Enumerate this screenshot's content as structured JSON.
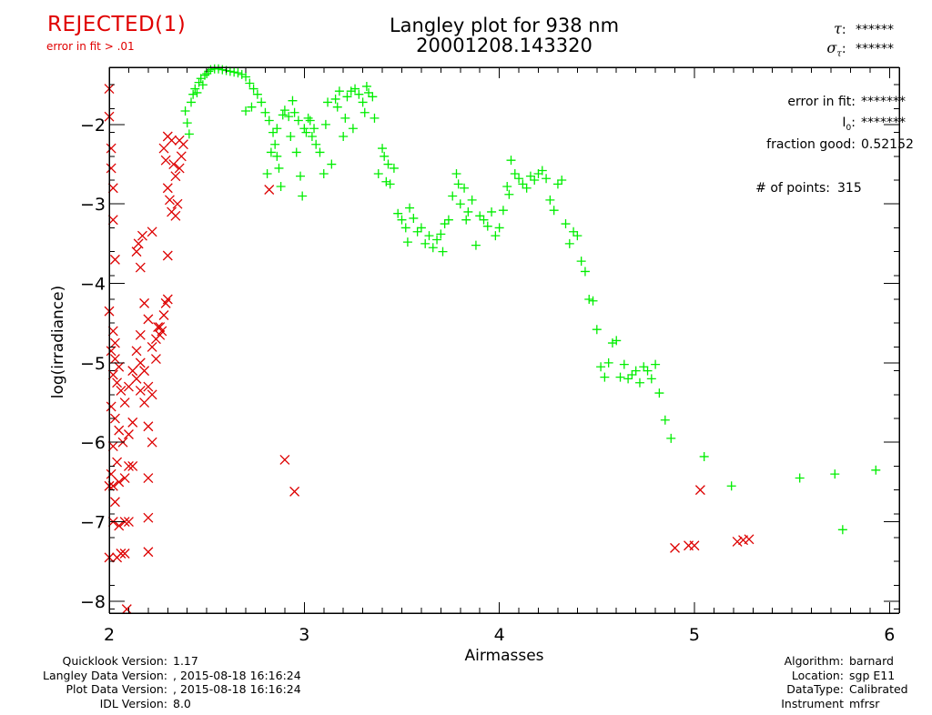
{
  "header": {
    "status": "REJECTED(1)",
    "status_reason": "error in fit > .01",
    "title_line1": "Langley plot for 938 nm",
    "title_line2": "20001208.143320",
    "tau_label": ":",
    "tau_value": "******",
    "sigma_tau_label": ":",
    "sigma_tau_value": "******"
  },
  "fit_stats": [
    {
      "label": "error in fit:",
      "value": "*******"
    },
    {
      "label": "I",
      "sub": "0",
      "suffix": ":",
      "value": "*******"
    },
    {
      "label": "fraction good:",
      "value": "0.52152"
    },
    {
      "label": "# of points:",
      "value": "315"
    }
  ],
  "footer_left": [
    {
      "label": "Quicklook Version:",
      "value": "1.17"
    },
    {
      "label": "Langley Data Version:",
      "value": ", 2015-08-18 16:16:24"
    },
    {
      "label": "Plot Data Version:",
      "value": ", 2015-08-18 16:16:24"
    },
    {
      "label": "IDL Version:",
      "value": "8.0"
    }
  ],
  "footer_right": [
    {
      "label": "Algorithm:",
      "value": "barnard"
    },
    {
      "label": "Location:",
      "value": "sgp E11"
    },
    {
      "label": "DataType:",
      "value": "Calibrated"
    },
    {
      "label": "Instrument",
      "value": "mfrsr"
    }
  ],
  "colors": {
    "status": "#e00000",
    "accepted": "#00ee00",
    "rejected": "#dd0000",
    "axis": "#000000"
  },
  "chart_data": {
    "type": "scatter",
    "title": "Langley plot for 938 nm",
    "subtitle": "20001208.143320",
    "xlabel": "Airmasses",
    "ylabel": "log(irradiance)",
    "xlim": [
      2,
      6.05
    ],
    "ylim": [
      -8.15,
      -1.28
    ],
    "xticks": [
      2,
      3,
      4,
      5,
      6
    ],
    "xtick_labels": [
      "2",
      "3",
      "4",
      "5",
      "6"
    ],
    "x_minor_step": 0.1,
    "yticks": [
      -2,
      -3,
      -4,
      -5,
      -6,
      -7,
      -8
    ],
    "ytick_labels": [
      "-2",
      "-3",
      "-4",
      "-5",
      "-6",
      "-7",
      "-8"
    ],
    "y_minor_step": 0.1,
    "grid": false,
    "series": [
      {
        "name": "accepted",
        "marker": "plus",
        "color": "#00ee00",
        "points": [
          [
            2.39,
            -1.83
          ],
          [
            2.4,
            -1.98
          ],
          [
            2.41,
            -2.12
          ],
          [
            2.42,
            -1.72
          ],
          [
            2.43,
            -1.62
          ],
          [
            2.44,
            -1.55
          ],
          [
            2.45,
            -1.6
          ],
          [
            2.46,
            -1.47
          ],
          [
            2.47,
            -1.42
          ],
          [
            2.48,
            -1.5
          ],
          [
            2.49,
            -1.38
          ],
          [
            2.5,
            -1.36
          ],
          [
            2.51,
            -1.33
          ],
          [
            2.52,
            -1.31
          ],
          [
            2.54,
            -1.3
          ],
          [
            2.56,
            -1.3
          ],
          [
            2.58,
            -1.31
          ],
          [
            2.6,
            -1.32
          ],
          [
            2.62,
            -1.33
          ],
          [
            2.64,
            -1.34
          ],
          [
            2.66,
            -1.35
          ],
          [
            2.68,
            -1.37
          ],
          [
            2.7,
            -1.4
          ],
          [
            2.72,
            -1.48
          ],
          [
            2.74,
            -1.55
          ],
          [
            2.76,
            -1.62
          ],
          [
            2.78,
            -1.72
          ],
          [
            2.7,
            -1.83
          ],
          [
            2.73,
            -1.78
          ],
          [
            2.8,
            -1.85
          ],
          [
            2.82,
            -1.95
          ],
          [
            2.84,
            -2.1
          ],
          [
            2.85,
            -2.25
          ],
          [
            2.86,
            -2.4
          ],
          [
            2.87,
            -2.55
          ],
          [
            2.88,
            -2.78
          ],
          [
            2.83,
            -2.35
          ],
          [
            2.81,
            -2.62
          ],
          [
            2.86,
            -2.05
          ],
          [
            2.89,
            -1.88
          ],
          [
            2.9,
            -1.82
          ],
          [
            2.92,
            -1.9
          ],
          [
            2.93,
            -2.15
          ],
          [
            2.94,
            -1.7
          ],
          [
            2.95,
            -1.85
          ],
          [
            2.96,
            -2.35
          ],
          [
            2.97,
            -1.95
          ],
          [
            2.98,
            -2.65
          ],
          [
            2.99,
            -2.9
          ],
          [
            3.0,
            -2.05
          ],
          [
            3.01,
            -2.1
          ],
          [
            3.02,
            -1.92
          ],
          [
            3.03,
            -1.95
          ],
          [
            3.04,
            -2.15
          ],
          [
            3.05,
            -2.05
          ],
          [
            3.06,
            -2.25
          ],
          [
            3.08,
            -2.35
          ],
          [
            3.1,
            -2.62
          ],
          [
            3.11,
            -2.0
          ],
          [
            3.12,
            -1.72
          ],
          [
            3.14,
            -2.5
          ],
          [
            3.16,
            -1.68
          ],
          [
            3.17,
            -1.78
          ],
          [
            3.18,
            -1.58
          ],
          [
            3.2,
            -2.15
          ],
          [
            3.21,
            -1.92
          ],
          [
            3.22,
            -1.65
          ],
          [
            3.24,
            -1.58
          ],
          [
            3.25,
            -2.05
          ],
          [
            3.26,
            -1.55
          ],
          [
            3.28,
            -1.62
          ],
          [
            3.3,
            -1.72
          ],
          [
            3.31,
            -1.85
          ],
          [
            3.32,
            -1.52
          ],
          [
            3.33,
            -1.6
          ],
          [
            3.35,
            -1.65
          ],
          [
            3.36,
            -1.92
          ],
          [
            3.38,
            -2.62
          ],
          [
            3.4,
            -2.3
          ],
          [
            3.41,
            -2.4
          ],
          [
            3.42,
            -2.72
          ],
          [
            3.43,
            -2.5
          ],
          [
            3.44,
            -2.75
          ],
          [
            3.46,
            -2.55
          ],
          [
            3.48,
            -3.12
          ],
          [
            3.5,
            -3.2
          ],
          [
            3.52,
            -3.3
          ],
          [
            3.53,
            -3.48
          ],
          [
            3.54,
            -3.05
          ],
          [
            3.56,
            -3.18
          ],
          [
            3.58,
            -3.35
          ],
          [
            3.6,
            -3.3
          ],
          [
            3.62,
            -3.5
          ],
          [
            3.64,
            -3.4
          ],
          [
            3.66,
            -3.55
          ],
          [
            3.68,
            -3.45
          ],
          [
            3.7,
            -3.38
          ],
          [
            3.71,
            -3.6
          ],
          [
            3.72,
            -3.25
          ],
          [
            3.74,
            -3.2
          ],
          [
            3.76,
            -2.9
          ],
          [
            3.78,
            -2.62
          ],
          [
            3.79,
            -2.75
          ],
          [
            3.8,
            -3.0
          ],
          [
            3.82,
            -2.8
          ],
          [
            3.83,
            -3.2
          ],
          [
            3.84,
            -3.1
          ],
          [
            3.86,
            -2.95
          ],
          [
            3.88,
            -3.52
          ],
          [
            3.9,
            -3.15
          ],
          [
            3.92,
            -3.2
          ],
          [
            3.94,
            -3.28
          ],
          [
            3.96,
            -3.1
          ],
          [
            3.98,
            -3.4
          ],
          [
            4.0,
            -3.3
          ],
          [
            4.02,
            -3.08
          ],
          [
            4.04,
            -2.78
          ],
          [
            4.05,
            -2.88
          ],
          [
            4.06,
            -2.45
          ],
          [
            4.08,
            -2.62
          ],
          [
            4.1,
            -2.68
          ],
          [
            4.12,
            -2.75
          ],
          [
            4.14,
            -2.8
          ],
          [
            4.16,
            -2.65
          ],
          [
            4.18,
            -2.7
          ],
          [
            4.2,
            -2.62
          ],
          [
            4.22,
            -2.58
          ],
          [
            4.24,
            -2.68
          ],
          [
            4.26,
            -2.95
          ],
          [
            4.28,
            -3.08
          ],
          [
            4.3,
            -2.75
          ],
          [
            4.32,
            -2.7
          ],
          [
            4.34,
            -3.25
          ],
          [
            4.36,
            -3.5
          ],
          [
            4.38,
            -3.35
          ],
          [
            4.4,
            -3.4
          ],
          [
            4.42,
            -3.72
          ],
          [
            4.44,
            -3.85
          ],
          [
            4.46,
            -4.2
          ],
          [
            4.48,
            -4.22
          ],
          [
            4.5,
            -4.58
          ],
          [
            4.52,
            -5.05
          ],
          [
            4.54,
            -5.18
          ],
          [
            4.56,
            -5.0
          ],
          [
            4.58,
            -4.75
          ],
          [
            4.6,
            -4.72
          ],
          [
            4.62,
            -5.18
          ],
          [
            4.64,
            -5.02
          ],
          [
            4.66,
            -5.2
          ],
          [
            4.68,
            -5.15
          ],
          [
            4.7,
            -5.1
          ],
          [
            4.72,
            -5.25
          ],
          [
            4.74,
            -5.05
          ],
          [
            4.76,
            -5.1
          ],
          [
            4.78,
            -5.2
          ],
          [
            4.8,
            -5.02
          ],
          [
            4.82,
            -5.38
          ],
          [
            4.85,
            -5.72
          ],
          [
            4.88,
            -5.95
          ],
          [
            5.05,
            -6.18
          ],
          [
            5.19,
            -6.55
          ],
          [
            5.54,
            -6.45
          ],
          [
            5.72,
            -6.4
          ],
          [
            5.93,
            -6.35
          ],
          [
            5.76,
            -7.1
          ]
        ]
      },
      {
        "name": "rejected",
        "marker": "x",
        "color": "#dd0000",
        "points": [
          [
            2.0,
            -1.55
          ],
          [
            2.0,
            -1.9
          ],
          [
            2.01,
            -2.3
          ],
          [
            2.01,
            -2.55
          ],
          [
            2.02,
            -2.8
          ],
          [
            2.02,
            -3.2
          ],
          [
            2.03,
            -3.7
          ],
          [
            2.0,
            -4.35
          ],
          [
            2.02,
            -4.6
          ],
          [
            2.03,
            -4.75
          ],
          [
            2.01,
            -4.85
          ],
          [
            2.03,
            -4.95
          ],
          [
            2.05,
            -5.05
          ],
          [
            2.02,
            -5.15
          ],
          [
            2.04,
            -5.25
          ],
          [
            2.06,
            -5.35
          ],
          [
            2.01,
            -5.55
          ],
          [
            2.03,
            -5.7
          ],
          [
            2.05,
            -5.85
          ],
          [
            2.02,
            -6.05
          ],
          [
            2.04,
            -6.25
          ],
          [
            2.01,
            -6.4
          ],
          [
            2.02,
            -6.55
          ],
          [
            2.03,
            -6.75
          ],
          [
            2.0,
            -6.55
          ],
          [
            2.02,
            -7.0
          ],
          [
            2.0,
            -7.45
          ],
          [
            2.04,
            -7.45
          ],
          [
            2.06,
            -7.4
          ],
          [
            2.08,
            -7.4
          ],
          [
            2.05,
            -7.05
          ],
          [
            2.08,
            -7.0
          ],
          [
            2.1,
            -7.0
          ],
          [
            2.05,
            -6.5
          ],
          [
            2.08,
            -6.45
          ],
          [
            2.1,
            -6.3
          ],
          [
            2.12,
            -6.3
          ],
          [
            2.07,
            -6.0
          ],
          [
            2.1,
            -5.9
          ],
          [
            2.12,
            -5.75
          ],
          [
            2.08,
            -5.5
          ],
          [
            2.1,
            -5.3
          ],
          [
            2.12,
            -5.1
          ],
          [
            2.14,
            -5.2
          ],
          [
            2.16,
            -5.0
          ],
          [
            2.18,
            -5.1
          ],
          [
            2.16,
            -5.35
          ],
          [
            2.18,
            -5.5
          ],
          [
            2.2,
            -5.3
          ],
          [
            2.22,
            -5.4
          ],
          [
            2.14,
            -4.85
          ],
          [
            2.16,
            -4.65
          ],
          [
            2.18,
            -4.25
          ],
          [
            2.2,
            -4.45
          ],
          [
            2.22,
            -4.8
          ],
          [
            2.24,
            -4.95
          ],
          [
            2.26,
            -4.55
          ],
          [
            2.27,
            -4.6
          ],
          [
            2.28,
            -4.4
          ],
          [
            2.29,
            -4.25
          ],
          [
            2.3,
            -4.2
          ],
          [
            2.24,
            -4.7
          ],
          [
            2.25,
            -4.55
          ],
          [
            2.26,
            -4.65
          ],
          [
            2.2,
            -5.8
          ],
          [
            2.22,
            -6.0
          ],
          [
            2.2,
            -6.45
          ],
          [
            2.2,
            -6.95
          ],
          [
            2.2,
            -7.38
          ],
          [
            2.15,
            -3.5
          ],
          [
            2.17,
            -3.4
          ],
          [
            2.22,
            -3.35
          ],
          [
            2.14,
            -3.6
          ],
          [
            2.16,
            -3.8
          ],
          [
            2.3,
            -3.65
          ],
          [
            2.28,
            -2.3
          ],
          [
            2.29,
            -2.45
          ],
          [
            2.3,
            -2.8
          ],
          [
            2.31,
            -2.95
          ],
          [
            2.32,
            -3.1
          ],
          [
            2.33,
            -2.5
          ],
          [
            2.34,
            -2.65
          ],
          [
            2.35,
            -3.0
          ],
          [
            2.36,
            -2.55
          ],
          [
            2.37,
            -2.4
          ],
          [
            2.38,
            -2.25
          ],
          [
            2.3,
            -2.15
          ],
          [
            2.32,
            -2.2
          ],
          [
            2.34,
            -3.15
          ],
          [
            2.36,
            -2.2
          ],
          [
            2.82,
            -2.82
          ],
          [
            2.9,
            -6.22
          ],
          [
            2.95,
            -6.62
          ],
          [
            5.03,
            -6.6
          ],
          [
            4.9,
            -7.33
          ],
          [
            4.97,
            -7.3
          ],
          [
            5.0,
            -7.3
          ],
          [
            5.22,
            -7.25
          ],
          [
            5.25,
            -7.23
          ],
          [
            5.28,
            -7.22
          ],
          [
            2.09,
            -8.1
          ]
        ]
      }
    ]
  }
}
